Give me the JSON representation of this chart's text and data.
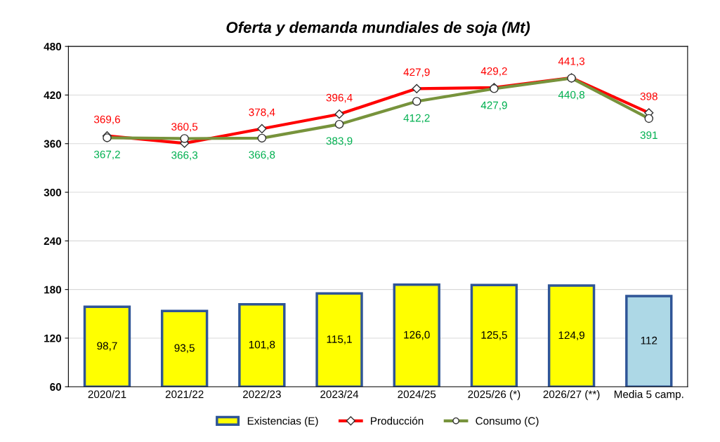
{
  "chart_data": {
    "type": "bar",
    "title": "Oferta y demanda mundiales de soja (Mt)",
    "categories": [
      "2020/21",
      "2021/22",
      "2022/23",
      "2023/24",
      "2024/25",
      "2025/26 (*)",
      "2026/27 (**)",
      "Media 5 camp."
    ],
    "ylim": [
      60,
      480
    ],
    "yticks": [
      60,
      120,
      180,
      240,
      300,
      360,
      420,
      480
    ],
    "grid": "y",
    "legend": "bottom",
    "data_labels": true,
    "series": [
      {
        "name": "Existencias (E)",
        "base": [
          60,
          60,
          60,
          60,
          60,
          60,
          60,
          60
        ],
        "colors": [
          "#ffff00",
          "#ffff00",
          "#ffff00",
          "#ffff00",
          "#ffff00",
          "#ffff00",
          "#ffff00",
          "#add8e6"
        ],
        "color": "#ffff00",
        "values": [
          98.7,
          93.5,
          101.8,
          115.1,
          126.0,
          125.5,
          124.9,
          112
        ],
        "value_labels": [
          "98,7",
          "93,5",
          "101,8",
          "115,1",
          "126,0",
          "125,5",
          "124,9",
          "112"
        ]
      },
      {
        "name": "Producción",
        "type": "line",
        "color": "#ff0000",
        "marker": "diamond",
        "values": [
          369.6,
          360.5,
          378.4,
          396.4,
          427.9,
          429.2,
          441.3,
          398
        ],
        "value_labels": [
          "369,6",
          "360,5",
          "378,4",
          "396,4",
          "427,9",
          "429,2",
          "441,3",
          "398"
        ]
      },
      {
        "name": "Consumo (C)",
        "type": "line",
        "color": "#77933c",
        "marker": "circle",
        "values": [
          367.2,
          366.3,
          366.8,
          383.9,
          412.2,
          427.9,
          440.8,
          391
        ],
        "value_labels": [
          "367,2",
          "366,3",
          "366,8",
          "383,9",
          "412,2",
          "427,9",
          "440,8",
          "391"
        ]
      }
    ]
  }
}
